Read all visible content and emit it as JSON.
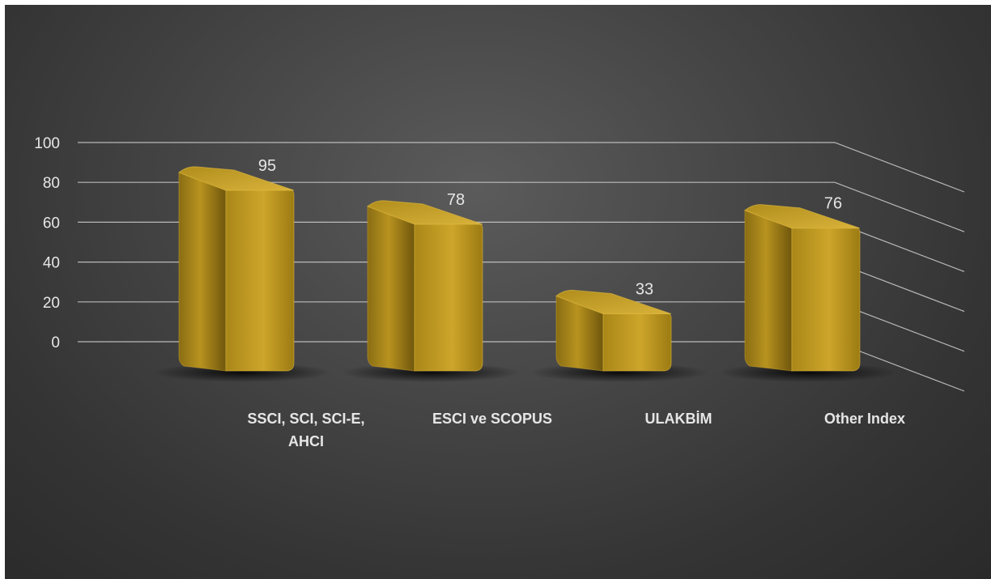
{
  "chart_data": {
    "type": "bar",
    "style": "3d-column",
    "categories": [
      "SSCI, SCI, SCI-E, AHCI",
      "ESCI ve SCOPUS",
      "ULAKBİM",
      "Other Index"
    ],
    "values": [
      95,
      78,
      33,
      76
    ],
    "ylim": [
      0,
      100
    ],
    "yticks": [
      0,
      20,
      40,
      60,
      80,
      100
    ],
    "grid": true,
    "legend": "none",
    "title": "",
    "xlabel": "",
    "ylabel": "",
    "colors": {
      "bar": "#c9a227",
      "bar_light": "#e0bb3a",
      "bar_dark": "#8f7316",
      "text": "#e6e6e6",
      "gridline": "#cfcfcf"
    }
  }
}
